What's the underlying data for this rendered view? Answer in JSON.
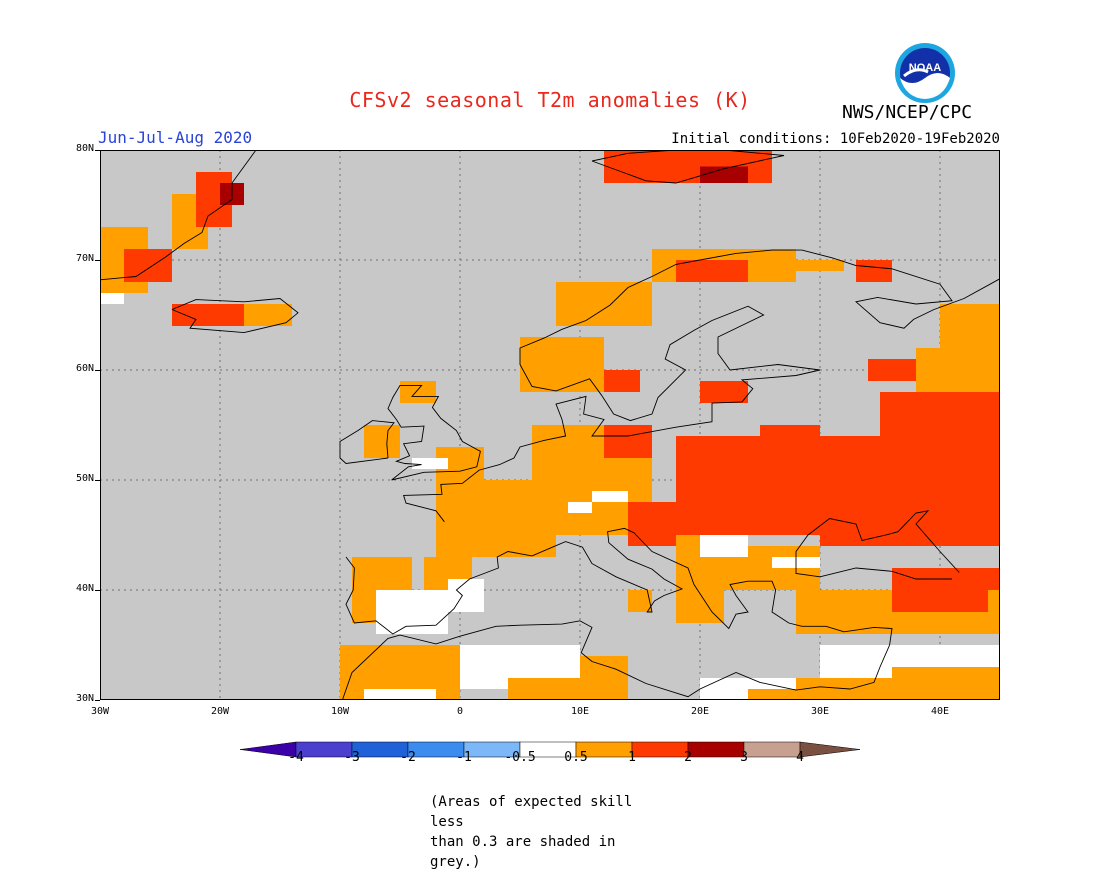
{
  "header": {
    "title": "CFSv2 seasonal T2m anomalies (K)",
    "season": "Jun-Jul-Aug 2020",
    "initial_conditions": "Initial conditions: 10Feb2020-19Feb2020",
    "agency": "NWS/NCEP/CPC",
    "logo_text": "NOAA"
  },
  "map": {
    "lon_range": [
      -30,
      45
    ],
    "lat_range": [
      30,
      80
    ],
    "lat_ticks": [
      "30N",
      "40N",
      "50N",
      "60N",
      "70N",
      "80N"
    ],
    "lon_ticks": [
      "30W",
      "20W",
      "10W",
      "0",
      "10E",
      "20E",
      "30E",
      "40E"
    ],
    "background_color": "#c8c8c8",
    "colors": {
      "c05_1": "#ff9f00",
      "c1_2": "#ff3a00",
      "c2_3": "#a80000",
      "neutral": "#ffffff"
    }
  },
  "legend": {
    "labels": [
      "-4",
      "-3",
      "-2",
      "-1",
      "-0.5",
      "0.5",
      "1",
      "2",
      "3",
      "4"
    ],
    "colors": [
      "#3b00a8",
      "#4b3fd0",
      "#2060d8",
      "#3c8cf0",
      "#7cb8f8",
      "#ffffff",
      "#ff9f00",
      "#ff3a00",
      "#a80000",
      "#c8a090",
      "#7a5040"
    ]
  },
  "footnote": {
    "line1": "(Areas of expected skill less",
    "line2": "than 0.3 are shaded in grey.)"
  }
}
